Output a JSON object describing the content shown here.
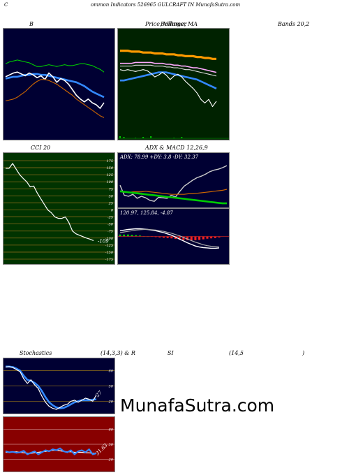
{
  "header": {
    "title": "ommon  Indicators 526965 GULCRAFT IN  MunafaSutra.com",
    "title_prefix": "C"
  },
  "labels": {
    "b": "B",
    "price_ma": "Price,  Volume,  MA",
    "price_overlay": "Bollinger",
    "bands": "Bands 20,2",
    "cci": "CCI 20",
    "adx_macd": "ADX  & MACD 12,26,9",
    "stochastics": "Stochastics",
    "stoch_params": "(14,3,3) & R",
    "si": "SI",
    "rsi_params": "(14,5",
    "rsi_close": ")"
  },
  "watermark": "MunafaSutra.com",
  "colors": {
    "dark_panel": "#000033",
    "price_panel": "#002200",
    "cci_panel": "#003300",
    "rsi_panel": "#880000",
    "grid_line": "#8a6a1a"
  },
  "chart_data": [
    {
      "id": "bollinger",
      "type": "line",
      "ylim": [
        0,
        100
      ],
      "series": [
        {
          "color": "#00cc00",
          "values": [
            72,
            74,
            75,
            76,
            75,
            74,
            73,
            71,
            69,
            69,
            70,
            71,
            70,
            69,
            70,
            71,
            70,
            70,
            71,
            72,
            72,
            71,
            70,
            68,
            66,
            63
          ]
        },
        {
          "color": "#3388ff",
          "values": [
            56,
            57,
            58,
            58,
            59,
            60,
            60,
            61,
            61,
            60,
            60,
            59,
            58,
            57,
            56,
            55,
            54,
            53,
            52,
            50,
            48,
            45,
            42,
            40,
            38,
            36
          ]
        },
        {
          "color": "#ffffff",
          "values": [
            58,
            60,
            62,
            63,
            61,
            59,
            62,
            60,
            57,
            59,
            55,
            62,
            58,
            52,
            56,
            54,
            50,
            44,
            38,
            34,
            31,
            34,
            30,
            28,
            24,
            30
          ]
        },
        {
          "color": "#cc6600",
          "values": [
            32,
            33,
            34,
            36,
            39,
            42,
            46,
            50,
            53,
            55,
            55,
            54,
            52,
            50,
            47,
            44,
            41,
            38,
            34,
            31,
            28,
            25,
            22,
            19,
            16,
            14
          ]
        }
      ]
    },
    {
      "id": "price_volume_ma",
      "type": "line",
      "ylim": [
        0,
        100
      ],
      "series": [
        {
          "color": "#ff9900",
          "values": [
            84,
            84,
            84,
            83,
            83,
            83,
            82,
            82,
            82,
            81,
            81,
            81,
            80,
            80,
            80,
            79,
            79,
            78,
            78,
            78,
            77,
            77,
            76,
            76,
            75,
            75
          ]
        },
        {
          "color": "#ffaaff",
          "values": [
            70,
            70,
            70,
            70,
            71,
            71,
            71,
            71,
            71,
            70,
            70,
            70,
            69,
            69,
            68,
            68,
            67,
            67,
            66,
            65,
            65,
            64,
            63,
            62,
            61,
            60
          ]
        },
        {
          "color": "#dddddd",
          "values": [
            67,
            67,
            67,
            67,
            68,
            68,
            68,
            68,
            68,
            67,
            67,
            67,
            66,
            66,
            65,
            65,
            64,
            63,
            63,
            62,
            61,
            60,
            59,
            58,
            57,
            56
          ]
        },
        {
          "color": "#3388ff",
          "values": [
            51,
            51,
            52,
            53,
            54,
            55,
            56,
            57,
            58,
            59,
            60,
            60,
            60,
            59,
            58,
            57,
            56,
            55,
            54,
            53,
            52,
            50,
            48,
            46,
            44,
            42
          ]
        },
        {
          "color": "#ffffff",
          "values": [
            63,
            62,
            63,
            62,
            61,
            62,
            63,
            62,
            59,
            55,
            57,
            60,
            57,
            52,
            56,
            58,
            55,
            50,
            46,
            42,
            37,
            30,
            26,
            30,
            22,
            28
          ]
        }
      ],
      "volume": [
        3,
        2,
        0,
        0,
        1,
        0,
        2,
        0,
        3,
        0,
        0,
        0,
        0,
        0,
        1,
        0,
        2,
        0,
        0,
        0,
        0,
        0,
        0,
        0,
        0,
        0
      ]
    },
    {
      "id": "cci",
      "type": "line",
      "ylim": [
        -175,
        175
      ],
      "yticks": [
        175,
        150,
        125,
        100,
        75,
        50,
        25,
        0,
        -25,
        -50,
        -75,
        -100,
        -125,
        -150,
        -175
      ],
      "last_value": "-109",
      "series": [
        {
          "color": "#ffffff",
          "values": [
            148,
            148,
            165,
            145,
            125,
            112,
            100,
            82,
            85,
            60,
            40,
            20,
            0,
            -10,
            -25,
            -30,
            -30,
            -25,
            -45,
            -75,
            -85,
            -90,
            -95,
            -100,
            -104,
            -109
          ]
        }
      ]
    },
    {
      "id": "adx",
      "type": "line",
      "ylim": [
        0,
        100
      ],
      "values_text": "ADX: 78.99  +DY: 3.8  -DY: 32.37",
      "series": [
        {
          "color": "#cccccc",
          "values": [
            40,
            20,
            18,
            22,
            14,
            18,
            15,
            10,
            8,
            16,
            15,
            14,
            20,
            17,
            28,
            38,
            44,
            50,
            55,
            58,
            62,
            67,
            70,
            72,
            75,
            79
          ]
        },
        {
          "color": "#cc6600",
          "values": [
            28,
            26,
            26,
            27,
            27,
            27,
            28,
            27,
            26,
            25,
            24,
            23,
            22,
            22,
            22,
            22,
            23,
            23,
            24,
            25,
            26,
            27,
            28,
            29,
            30,
            32
          ]
        },
        {
          "color": "#00cc00",
          "values": [
            28,
            27,
            26,
            25,
            24,
            23,
            22,
            21,
            20,
            19,
            18,
            17,
            16,
            15,
            14,
            13,
            12,
            11,
            10,
            9,
            8,
            7,
            6,
            5,
            4,
            4
          ]
        }
      ]
    },
    {
      "id": "macd",
      "type": "line",
      "ylim": [
        -8,
        8
      ],
      "values_text": "120.97,  125.84,  -4.87",
      "series": [
        {
          "color": "#ffffff",
          "values": [
            1.8,
            2.0,
            2.2,
            2.3,
            2.4,
            2.4,
            2.3,
            2.2,
            2.0,
            1.8,
            1.5,
            1.2,
            0.8,
            0.4,
            -0.2,
            -0.8,
            -1.4,
            -2.0,
            -2.5,
            -3.0,
            -3.3,
            -3.5,
            -3.6,
            -3.7,
            -3.7,
            -3.6
          ]
        },
        {
          "color": "#aaaaaa",
          "values": [
            1.2,
            1.4,
            1.6,
            1.8,
            2.0,
            2.1,
            2.2,
            2.2,
            2.1,
            2.0,
            1.8,
            1.6,
            1.3,
            1.0,
            0.6,
            0.2,
            -0.3,
            -0.8,
            -1.3,
            -1.8,
            -2.2,
            -2.6,
            -2.9,
            -3.1,
            -3.2,
            -3.3
          ]
        }
      ],
      "histogram": [
        0.6,
        0.6,
        0.6,
        0.5,
        0.4,
        0.3,
        0.1,
        0,
        -0.1,
        -0.2,
        -0.3,
        -0.4,
        -0.5,
        -0.6,
        -0.8,
        -1.0,
        -1.1,
        -1.2,
        -1.2,
        -1.2,
        -1.1,
        -0.9,
        -0.7,
        -0.6,
        -0.5,
        -0.3
      ]
    },
    {
      "id": "stochastics",
      "type": "line",
      "ylim": [
        0,
        100
      ],
      "yticks": [
        80,
        50,
        20
      ],
      "last_value": "27",
      "series": [
        {
          "color": "#3388ff",
          "values": [
            88,
            88,
            87,
            84,
            80,
            70,
            62,
            60,
            56,
            50,
            40,
            28,
            18,
            12,
            8,
            6,
            7,
            10,
            14,
            18,
            20,
            22,
            22,
            22,
            23,
            24
          ]
        },
        {
          "color": "#ffffff",
          "values": [
            87,
            88,
            86,
            82,
            78,
            64,
            55,
            62,
            52,
            45,
            30,
            18,
            10,
            6,
            4,
            8,
            12,
            14,
            20,
            22,
            18,
            22,
            26,
            24,
            20,
            32
          ]
        }
      ]
    },
    {
      "id": "rsi",
      "type": "line",
      "ylim": [
        0,
        100
      ],
      "yticks": [
        80,
        50,
        20
      ],
      "last_value": "31.63",
      "series": [
        {
          "color": "#ffffff",
          "values": [
            34,
            34,
            35,
            35,
            34,
            33,
            32,
            32,
            33,
            34,
            35,
            36,
            37,
            38,
            38,
            37,
            36,
            35,
            35,
            34,
            34,
            34,
            33,
            33,
            32,
            32
          ]
        },
        {
          "color": "#3388ff",
          "values": [
            36,
            34,
            35,
            33,
            34,
            37,
            30,
            33,
            36,
            30,
            34,
            38,
            36,
            40,
            38,
            42,
            36,
            34,
            38,
            30,
            36,
            38,
            34,
            40,
            30,
            32
          ]
        }
      ]
    }
  ]
}
